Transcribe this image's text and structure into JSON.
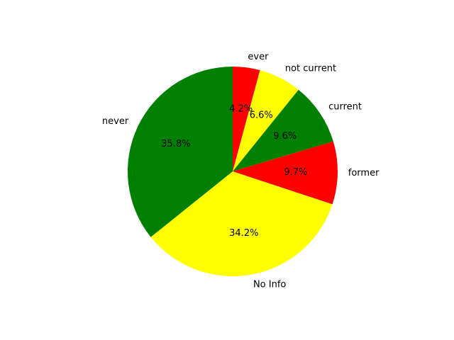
{
  "chart_data": {
    "type": "pie",
    "start_angle_deg": 90,
    "direction": "clockwise",
    "slices": [
      {
        "label": "ever",
        "value": 4.2,
        "pct_label": "4.2%",
        "color": "#ff0000"
      },
      {
        "label": "not current",
        "value": 6.6,
        "pct_label": "6.6%",
        "color": "#ffff00"
      },
      {
        "label": "current",
        "value": 9.6,
        "pct_label": "9.6%",
        "color": "#008000"
      },
      {
        "label": "former",
        "value": 9.7,
        "pct_label": "9.7%",
        "color": "#ff0000"
      },
      {
        "label": "No Info",
        "value": 34.2,
        "pct_label": "34.2%",
        "color": "#ffff00"
      },
      {
        "label": "never",
        "value": 35.8,
        "pct_label": "35.8%",
        "color": "#008000"
      }
    ]
  }
}
